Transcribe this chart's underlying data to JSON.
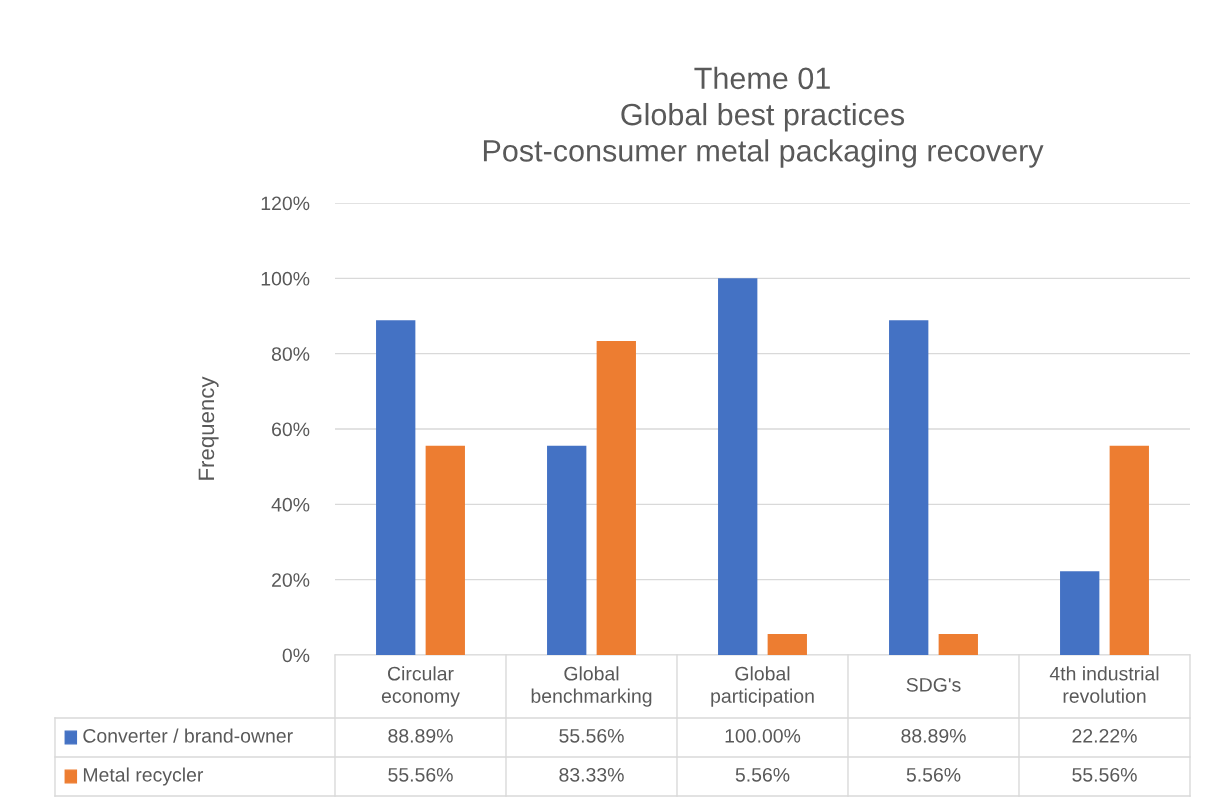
{
  "chart_data": {
    "type": "bar",
    "title": "Theme 01\nGlobal best practices\nPost-consumer metal packaging recovery",
    "ylabel": "Frequency",
    "categories": [
      "Circular\neconomy",
      "Global\nbenchmarking",
      "Global\nparticipation",
      "SDG's",
      "4th industrial\nrevolution"
    ],
    "series": [
      {
        "name": "Converter / brand-owner",
        "color": "#4472c4",
        "values": [
          88.89,
          55.56,
          100.0,
          88.89,
          22.22
        ],
        "value_labels": [
          "88.89%",
          "55.56%",
          "100.00%",
          "88.89%",
          "22.22%"
        ]
      },
      {
        "name": "Metal recycler",
        "color": "#ed7d31",
        "values": [
          55.56,
          83.33,
          5.56,
          5.56,
          55.56
        ],
        "value_labels": [
          "55.56%",
          "83.33%",
          "5.56%",
          "5.56%",
          "55.56%"
        ]
      }
    ],
    "ylim": [
      0,
      120
    ],
    "yticks": [
      {
        "value": 0,
        "label": "0%"
      },
      {
        "value": 20,
        "label": "20%"
      },
      {
        "value": 40,
        "label": "40%"
      },
      {
        "value": 60,
        "label": "60%"
      },
      {
        "value": 80,
        "label": "80%"
      },
      {
        "value": 100,
        "label": "100%"
      },
      {
        "value": 120,
        "label": "120%"
      }
    ],
    "grid": "y",
    "legend": "bottom"
  }
}
